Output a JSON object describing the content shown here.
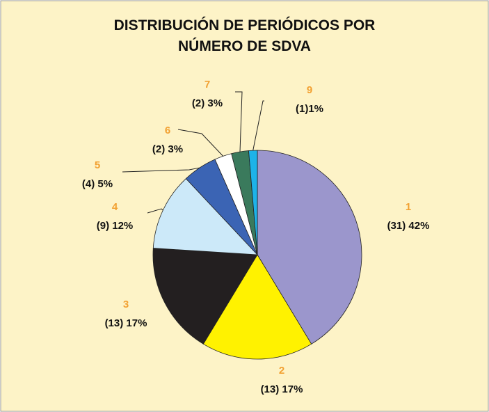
{
  "chart_data": {
    "type": "pie",
    "title": "DISTRIBUCIÓN DE PERIÓDICOS POR NÚMERO DE SDVA",
    "categories": [
      "1",
      "2",
      "3",
      "4",
      "5",
      "6",
      "7",
      "9"
    ],
    "values": [
      31,
      13,
      13,
      9,
      4,
      2,
      2,
      1
    ],
    "value_labels": [
      "(31) 42%",
      "(13) 17%",
      "(13) 17%",
      "(9) 12%",
      "(4) 5%",
      "(2) 3%",
      "(2) 3%",
      "(1)1%"
    ],
    "colors": [
      "#9b96cc",
      "#fff200",
      "#231f20",
      "#cce9f9",
      "#3b64b4",
      "#ffffff",
      "#3a7a5c",
      "#1db3e8"
    ]
  }
}
